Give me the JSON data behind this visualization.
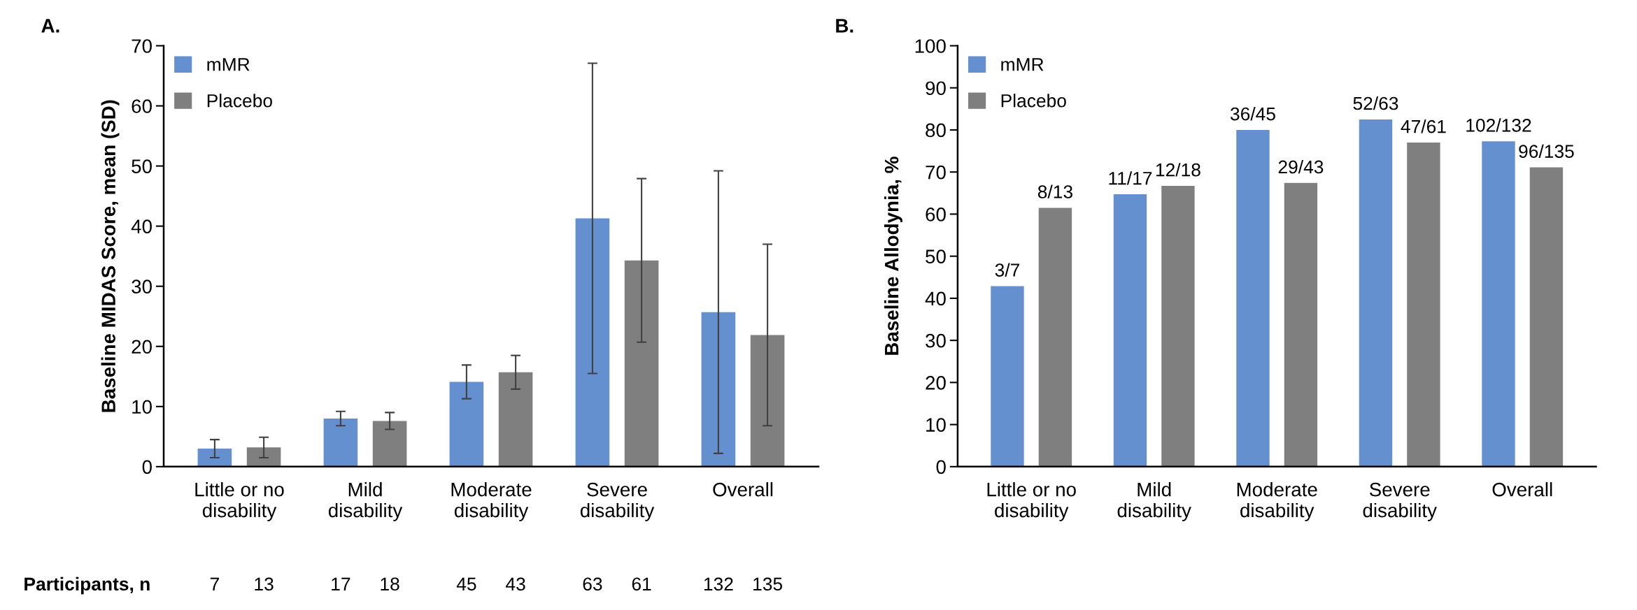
{
  "chart_data": [
    {
      "type": "bar",
      "title": "A.",
      "ylabel": "Baseline MIDAS Score, mean (SD)",
      "categories": [
        "Little or no\ndisability",
        "Mild\ndisability",
        "Moderate\ndisability",
        "Severe\ndisability",
        "Overall"
      ],
      "series": [
        {
          "name": "mMR",
          "color": "#6490cf",
          "values": [
            3.0,
            8.0,
            14.1,
            41.3,
            25.7
          ],
          "errors": [
            1.5,
            1.2,
            2.8,
            25.8,
            23.5
          ]
        },
        {
          "name": "Placebo",
          "color": "#7f7f7f",
          "values": [
            3.2,
            7.6,
            15.7,
            34.3,
            21.9
          ],
          "errors": [
            1.7,
            1.4,
            2.8,
            13.6,
            15.1
          ]
        }
      ],
      "ylim": [
        0,
        70
      ],
      "yticks": [
        0,
        10,
        20,
        30,
        40,
        50,
        60,
        70
      ],
      "grid": false,
      "legend": "top left",
      "annotations": [
        "Participants, n",
        "7",
        "13",
        "17",
        "18",
        "45",
        "43",
        "63",
        "61",
        "132",
        "135"
      ]
    },
    {
      "type": "bar",
      "title": "B.",
      "ylabel": "Baseline Allodynia, %",
      "categories": [
        "Little or no\ndisability",
        "Mild\ndisability",
        "Moderate\ndisability",
        "Severe\ndisability",
        "Overall"
      ],
      "series": [
        {
          "name": "mMR",
          "color": "#6490cf",
          "values": [
            42.9,
            64.7,
            80.0,
            82.5,
            77.3
          ],
          "value_labels": [
            "3/7",
            "11/17",
            "36/45",
            "52/63",
            "102/132"
          ]
        },
        {
          "name": "Placebo",
          "color": "#7f7f7f",
          "values": [
            61.5,
            66.7,
            67.4,
            77.0,
            71.1
          ],
          "value_labels": [
            "8/13",
            "12/18",
            "29/43",
            "47/61",
            "96/135"
          ]
        }
      ],
      "ylim": [
        0,
        100
      ],
      "yticks": [
        0,
        10,
        20,
        30,
        40,
        50,
        60,
        70,
        80,
        90,
        100
      ],
      "grid": false,
      "legend": "top left"
    }
  ]
}
